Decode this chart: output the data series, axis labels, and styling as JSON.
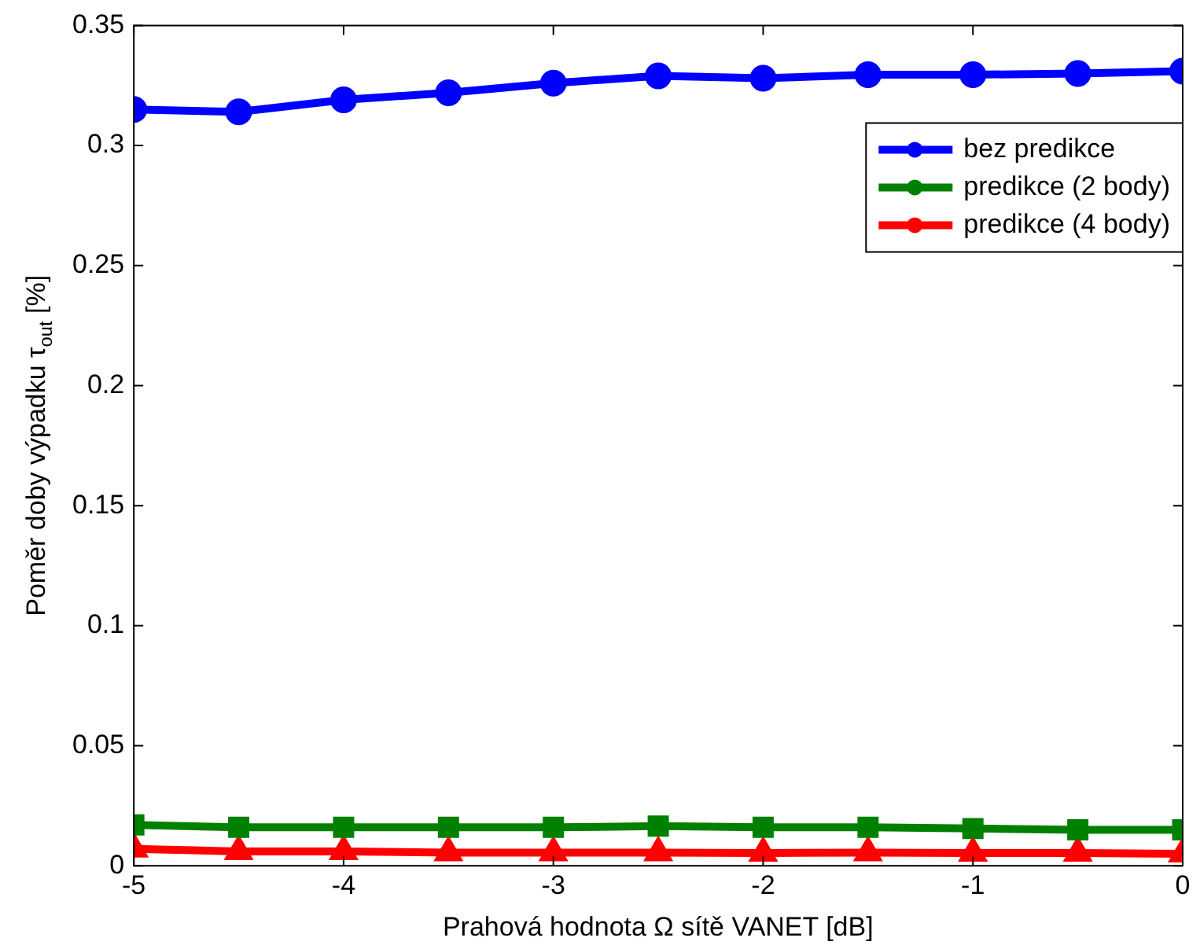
{
  "chart_data": {
    "type": "line",
    "xlabel": "Prahová hodnota Ω sítě VANET [dB]",
    "ylabel": "Poměr doby výpadku τ$_{out}$ [%]",
    "x": [
      -5,
      -4.5,
      -4,
      -3.5,
      -3,
      -2.5,
      -2,
      -1.5,
      -1,
      -0.5,
      0
    ],
    "xlim": [
      -5,
      0
    ],
    "xticks": [
      -5,
      -4,
      -3,
      -2,
      -1,
      0
    ],
    "ylim": [
      0,
      0.35
    ],
    "yticks": [
      0,
      0.05,
      0.1,
      0.15,
      0.2,
      0.25,
      0.3,
      0.35
    ],
    "grid": false,
    "legend": "top right",
    "line_style": "solid",
    "series": [
      {
        "name": "bez predikce",
        "color": "#0000ff",
        "marker": "circle",
        "values": [
          0.315,
          0.314,
          0.319,
          0.322,
          0.326,
          0.329,
          0.328,
          0.3295,
          0.3295,
          0.33,
          0.331
        ]
      },
      {
        "name": "predikce (2 body)",
        "color": "#008000",
        "marker": "square",
        "values": [
          0.017,
          0.016,
          0.016,
          0.016,
          0.016,
          0.0165,
          0.016,
          0.016,
          0.0155,
          0.015,
          0.015
        ]
      },
      {
        "name": "predikce (4 body)",
        "color": "#ff0000",
        "marker": "triangle",
        "values": [
          0.007,
          0.006,
          0.006,
          0.0055,
          0.0055,
          0.0055,
          0.0053,
          0.0055,
          0.0053,
          0.0053,
          0.005
        ]
      }
    ]
  }
}
